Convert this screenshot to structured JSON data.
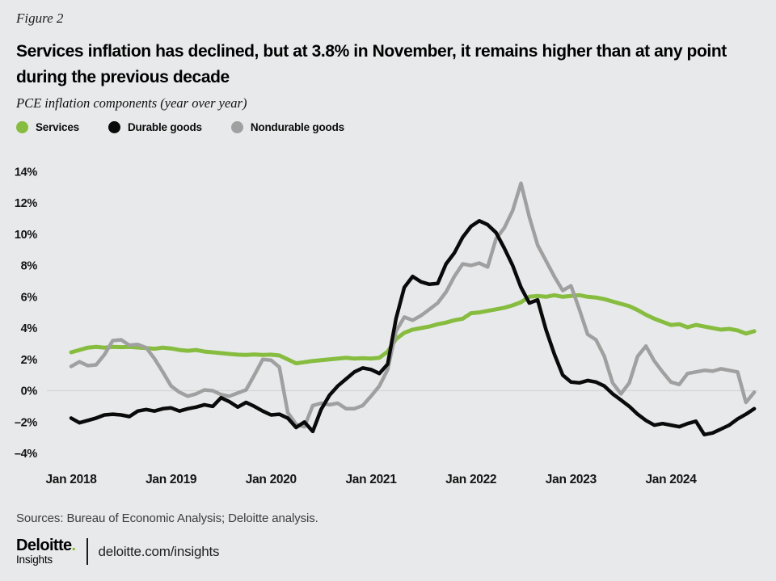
{
  "figure_label": "Figure 2",
  "title_lines": [
    "Services inflation has declined, but at 3.8% in November, it remains higher than at any point",
    "during the previous decade"
  ],
  "subtitle": "PCE inflation components (year over year)",
  "sources": "Sources: Bureau of Economic Analysis; Deloitte analysis.",
  "footer": {
    "brand": "Deloitte",
    "brand_dot": ".",
    "brand_sub": "Insights",
    "link": "deloitte.com/insights"
  },
  "colors": {
    "background": "#e7e9eb",
    "services_green": "#86bd3e",
    "durables_black": "#0a0a0a",
    "nondurables_gray": "#a0a0a0",
    "zero_gridline": "#d3d5d7",
    "brand_dot_green": "#86bc25"
  },
  "chart_data": {
    "type": "line",
    "title": "PCE inflation components (year over year)",
    "x_unit": "month",
    "x_range": [
      "Jan 2018",
      "Nov 2024"
    ],
    "x_tick_labels": [
      "Jan 2018",
      "Jan 2019",
      "Jan 2020",
      "Jan 2021",
      "Jan 2022",
      "Jan 2023",
      "Jan 2024"
    ],
    "y_tick_values": [
      14,
      12,
      10,
      8,
      6,
      4,
      2,
      0,
      -2,
      -4
    ],
    "y_tick_labels": [
      "14%",
      "12%",
      "10%",
      "8%",
      "6%",
      "4%",
      "2%",
      "0%",
      "–2%",
      "–4%"
    ],
    "ylim": [
      -4.8,
      14.8
    ],
    "grid": "zero-line-only",
    "legend_position": "top-left",
    "last_point_highlight": "Services 3.8% in Nov 2024",
    "series": [
      {
        "name": "Services",
        "color": "#86bd3e",
        "stroke_width": 5,
        "values": [
          2.45,
          2.6,
          2.75,
          2.8,
          2.75,
          2.8,
          2.78,
          2.8,
          2.76,
          2.72,
          2.68,
          2.75,
          2.7,
          2.6,
          2.55,
          2.6,
          2.5,
          2.45,
          2.4,
          2.35,
          2.3,
          2.28,
          2.32,
          2.28,
          2.3,
          2.25,
          2.0,
          1.75,
          1.82,
          1.9,
          1.95,
          2.0,
          2.05,
          2.1,
          2.05,
          2.08,
          2.05,
          2.1,
          2.5,
          3.3,
          3.7,
          3.9,
          4.0,
          4.1,
          4.25,
          4.35,
          4.5,
          4.6,
          4.95,
          5.0,
          5.1,
          5.2,
          5.3,
          5.45,
          5.65,
          6.0,
          6.05,
          6.0,
          6.1,
          6.0,
          6.05,
          6.1,
          6.0,
          5.95,
          5.85,
          5.7,
          5.55,
          5.4,
          5.15,
          4.85,
          4.6,
          4.4,
          4.2,
          4.25,
          4.05,
          4.2,
          4.1,
          4.0,
          3.9,
          3.95,
          3.85,
          3.65,
          3.8
        ]
      },
      {
        "name": "Durable goods",
        "color": "#0a0a0a",
        "stroke_width": 4.5,
        "values": [
          -1.75,
          -2.05,
          -1.9,
          -1.75,
          -1.55,
          -1.5,
          -1.55,
          -1.65,
          -1.3,
          -1.2,
          -1.3,
          -1.15,
          -1.1,
          -1.3,
          -1.15,
          -1.05,
          -0.9,
          -1.0,
          -0.45,
          -0.7,
          -1.05,
          -0.75,
          -1.0,
          -1.3,
          -1.55,
          -1.5,
          -1.75,
          -2.35,
          -2.0,
          -2.6,
          -1.2,
          -0.3,
          0.3,
          0.75,
          1.2,
          1.45,
          1.35,
          1.1,
          1.7,
          4.6,
          6.6,
          7.3,
          6.95,
          6.8,
          6.85,
          8.1,
          8.8,
          9.8,
          10.5,
          10.85,
          10.6,
          10.1,
          9.1,
          8.0,
          6.6,
          5.6,
          5.8,
          3.9,
          2.35,
          1.0,
          0.55,
          0.5,
          0.65,
          0.55,
          0.3,
          -0.2,
          -0.6,
          -1.0,
          -1.5,
          -1.9,
          -2.2,
          -2.1,
          -2.2,
          -2.3,
          -2.1,
          -1.95,
          -2.8,
          -2.7,
          -2.45,
          -2.2,
          -1.8,
          -1.5,
          -1.15
        ]
      },
      {
        "name": "Nondurable goods",
        "color": "#a0a0a0",
        "stroke_width": 4.5,
        "values": [
          1.55,
          1.85,
          1.6,
          1.65,
          2.3,
          3.2,
          3.25,
          2.9,
          2.95,
          2.75,
          2.05,
          1.2,
          0.3,
          -0.1,
          -0.35,
          -0.2,
          0.05,
          0.0,
          -0.25,
          -0.35,
          -0.15,
          0.05,
          1.0,
          2.0,
          1.95,
          1.5,
          -1.4,
          -2.15,
          -2.3,
          -0.95,
          -0.8,
          -0.9,
          -0.8,
          -1.15,
          -1.15,
          -0.95,
          -0.35,
          0.3,
          1.35,
          3.8,
          4.7,
          4.5,
          4.8,
          5.2,
          5.6,
          6.3,
          7.3,
          8.1,
          8.0,
          8.15,
          7.9,
          9.7,
          10.4,
          11.5,
          13.25,
          11.1,
          9.3,
          8.3,
          7.3,
          6.4,
          6.7,
          5.2,
          3.6,
          3.25,
          2.2,
          0.5,
          -0.2,
          0.5,
          2.2,
          2.85,
          1.9,
          1.2,
          0.55,
          0.4,
          1.1,
          1.2,
          1.3,
          1.25,
          1.4,
          1.3,
          1.2,
          -0.75,
          -0.1
        ]
      }
    ]
  }
}
